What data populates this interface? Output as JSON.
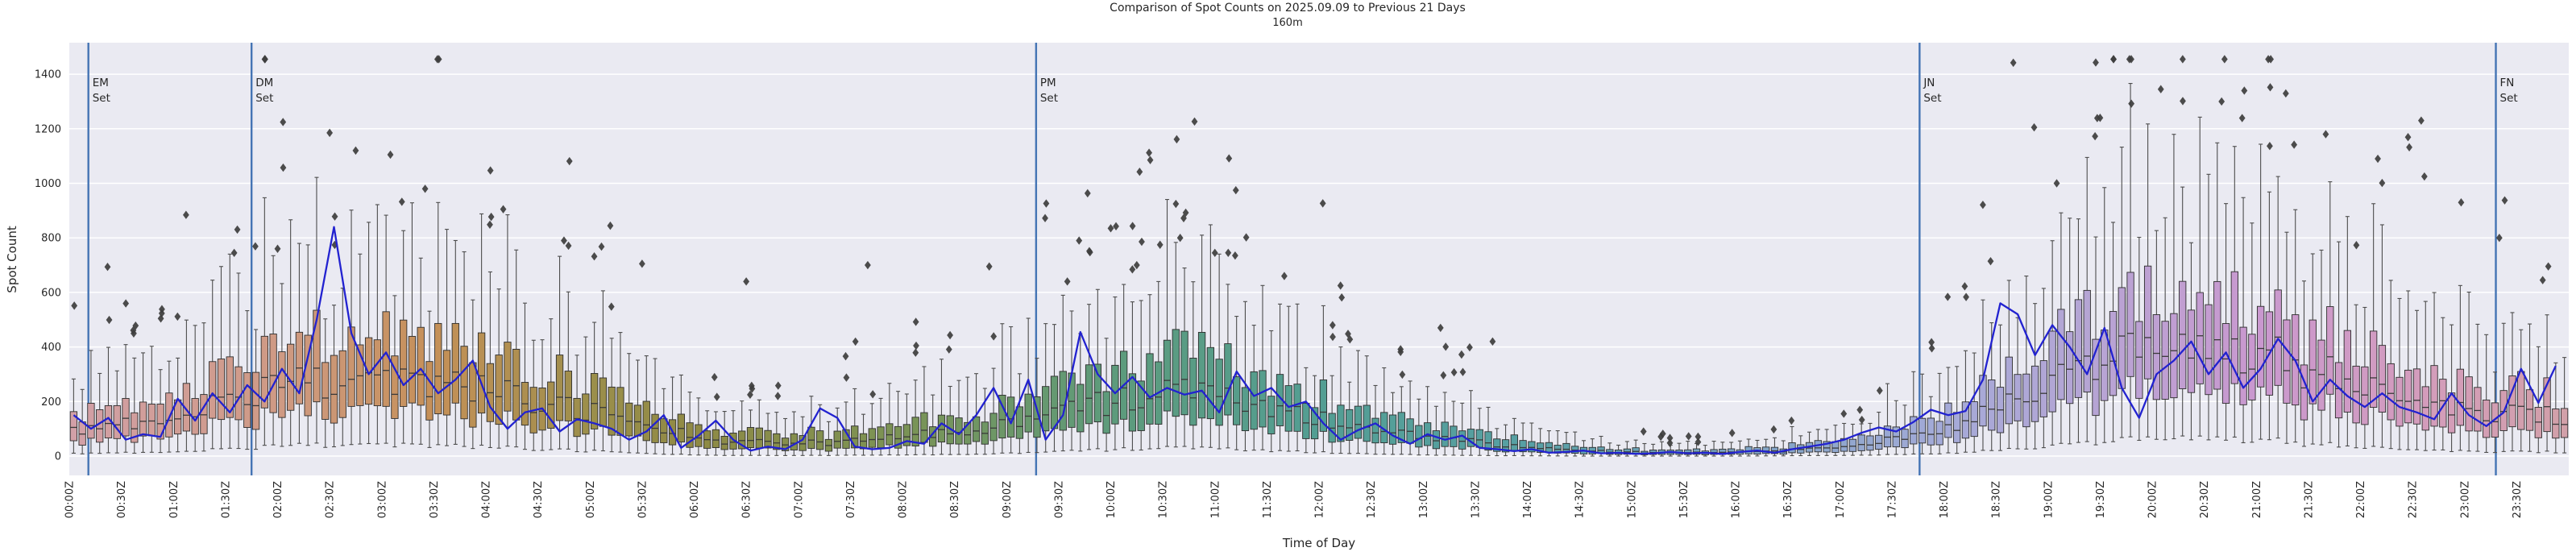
{
  "figure": {
    "title": "Comparison of Spot Counts on 2025.09.09 to Previous 21 Days",
    "subtitle": "160m",
    "xlabel": "Time of Day",
    "ylabel": "Spot Count"
  },
  "chart_data": {
    "type": "boxplot+line",
    "description": "Box plots of spot counts per 5-minute bin for previous 21 days, with blue line of current day (2025.09.09) counts, dark diamonds as outliers, and vertical band-set event lines.",
    "bin_minutes": 5,
    "anchor_step_minutes": 30,
    "ylim": [
      -75,
      1515
    ],
    "yticks": [
      0,
      200,
      400,
      600,
      800,
      1000,
      1200,
      1400
    ],
    "x_tick_labels": [
      "00:00Z",
      "00:30Z",
      "01:00Z",
      "01:30Z",
      "02:00Z",
      "02:30Z",
      "03:00Z",
      "03:30Z",
      "04:00Z",
      "04:30Z",
      "05:00Z",
      "05:30Z",
      "06:00Z",
      "06:30Z",
      "07:00Z",
      "07:30Z",
      "08:00Z",
      "08:30Z",
      "09:00Z",
      "09:30Z",
      "10:00Z",
      "10:30Z",
      "11:00Z",
      "11:30Z",
      "12:00Z",
      "12:30Z",
      "13:00Z",
      "13:30Z",
      "14:00Z",
      "14:30Z",
      "15:00Z",
      "15:30Z",
      "16:00Z",
      "16:30Z",
      "17:00Z",
      "17:30Z",
      "18:00Z",
      "18:30Z",
      "19:00Z",
      "19:30Z",
      "20:00Z",
      "20:30Z",
      "21:00Z",
      "21:30Z",
      "22:00Z",
      "22:30Z",
      "23:00Z",
      "23:30Z"
    ],
    "events": [
      {
        "label_line1": "EM",
        "label_line2": "Set",
        "minutes": 11
      },
      {
        "label_line1": "DM",
        "label_line2": "Set",
        "minutes": 105
      },
      {
        "label_line1": "PM",
        "label_line2": "Set",
        "minutes": 557
      },
      {
        "label_line1": "JN",
        "label_line2": "Set",
        "minutes": 1066
      },
      {
        "label_line1": "FN",
        "label_line2": "Set",
        "minutes": 1398
      }
    ],
    "series": {
      "boxes_anchors_30min": {
        "median": [
          100,
          120,
          160,
          200,
          250,
          280,
          280,
          265,
          245,
          205,
          160,
          115,
          70,
          50,
          45,
          55,
          70,
          90,
          120,
          160,
          200,
          235,
          220,
          180,
          140,
          100,
          70,
          50,
          30,
          20,
          15,
          12,
          15,
          20,
          30,
          60,
          100,
          170,
          260,
          340,
          400,
          420,
          380,
          320,
          260,
          210,
          170,
          160,
          150
        ],
        "q1": [
          55,
          65,
          90,
          115,
          145,
          165,
          165,
          155,
          140,
          115,
          90,
          62,
          35,
          25,
          22,
          28,
          35,
          48,
          65,
          90,
          115,
          135,
          125,
          100,
          75,
          52,
          35,
          25,
          14,
          9,
          7,
          5,
          7,
          10,
          15,
          30,
          55,
          95,
          150,
          200,
          240,
          250,
          225,
          185,
          148,
          118,
          95,
          88,
          82
        ],
        "q3": [
          170,
          200,
          260,
          320,
          390,
          430,
          430,
          410,
          380,
          320,
          255,
          185,
          115,
          85,
          78,
          92,
          115,
          150,
          195,
          255,
          315,
          400,
          345,
          285,
          225,
          165,
          115,
          85,
          52,
          34,
          26,
          21,
          26,
          35,
          52,
          100,
          165,
          270,
          400,
          510,
          590,
          615,
          560,
          475,
          390,
          320,
          262,
          248,
          235
        ],
        "whisker_low": [
          10,
          12,
          18,
          25,
          35,
          42,
          42,
          38,
          33,
          26,
          18,
          10,
          4,
          2,
          2,
          3,
          4,
          6,
          10,
          16,
          24,
          30,
          27,
          20,
          14,
          8,
          4,
          2,
          1,
          0,
          0,
          0,
          0,
          1,
          2,
          5,
          10,
          20,
          35,
          50,
          65,
          70,
          60,
          45,
          33,
          24,
          18,
          16,
          15
        ],
        "whisker_high": [
          320,
          380,
          490,
          600,
          710,
          780,
          780,
          745,
          690,
          590,
          480,
          355,
          225,
          170,
          155,
          180,
          225,
          290,
          375,
          485,
          590,
          680,
          645,
          540,
          430,
          320,
          225,
          170,
          105,
          70,
          55,
          45,
          55,
          72,
          105,
          195,
          320,
          510,
          740,
          930,
          1060,
          1100,
          1010,
          870,
          720,
          600,
          500,
          475,
          450
        ]
      },
      "current_day_line": {
        "label": "2025.09.09",
        "minutes_step": 10,
        "values": [
          150,
          100,
          140,
          60,
          80,
          70,
          210,
          130,
          230,
          160,
          260,
          200,
          320,
          230,
          500,
          840,
          450,
          300,
          380,
          260,
          320,
          230,
          280,
          350,
          180,
          100,
          160,
          175,
          90,
          135,
          120,
          100,
          60,
          90,
          150,
          30,
          75,
          130,
          60,
          20,
          35,
          25,
          60,
          175,
          140,
          35,
          25,
          30,
          55,
          45,
          120,
          80,
          150,
          250,
          120,
          280,
          60,
          150,
          455,
          300,
          230,
          290,
          215,
          250,
          225,
          240,
          160,
          310,
          220,
          250,
          180,
          200,
          120,
          60,
          95,
          120,
          75,
          45,
          80,
          60,
          75,
          30,
          25,
          18,
          25,
          12,
          15,
          20,
          10,
          12,
          8,
          10,
          15,
          10,
          12,
          8,
          15,
          20,
          12,
          25,
          35,
          45,
          60,
          85,
          105,
          90,
          125,
          170,
          150,
          165,
          280,
          560,
          520,
          370,
          480,
          400,
          300,
          470,
          250,
          140,
          300,
          350,
          420,
          300,
          380,
          250,
          320,
          430,
          350,
          200,
          280,
          220,
          180,
          230,
          180,
          160,
          135,
          230,
          150,
          110,
          160,
          320,
          195,
          330
        ]
      },
      "notable_outliers": [
        [
          95,
          745
        ],
        [
          120,
          760
        ],
        [
          150,
          1185
        ],
        [
          165,
          1120
        ],
        [
          185,
          1105
        ],
        [
          205,
          980
        ],
        [
          250,
          905
        ],
        [
          285,
          790
        ],
        [
          330,
          705
        ],
        [
          390,
          640
        ],
        [
          460,
          700
        ],
        [
          530,
          695
        ],
        [
          575,
          640
        ],
        [
          600,
          835
        ],
        [
          615,
          700
        ],
        [
          640,
          800
        ],
        [
          660,
          745
        ],
        [
          700,
          660
        ],
        [
          790,
          470
        ],
        [
          820,
          420
        ],
        [
          1120,
          1442
        ],
        [
          1132,
          1205
        ],
        [
          1145,
          1000
        ],
        [
          1170,
          1240
        ],
        [
          1188,
          1292
        ],
        [
          1205,
          1345
        ],
        [
          1240,
          1300
        ],
        [
          1268,
          1352
        ],
        [
          1300,
          1180
        ],
        [
          1330,
          1090
        ],
        [
          1355,
          1230
        ],
        [
          1378,
          930
        ],
        [
          1400,
          800
        ],
        [
          1425,
          645
        ]
      ]
    },
    "colors": {
      "plot_bg": "#eaeaf2",
      "grid": "#ffffff",
      "line": "#2222d0",
      "event_line": "#4474b4",
      "box_edge": "#2e2e2e",
      "median": "#3a3a3a",
      "whisker": "#4d4d4d",
      "outlier": "#3d3d3d",
      "tick_text": "#262626",
      "palette_anchors": [
        {
          "m": 0,
          "c": "#d2a0a8"
        },
        {
          "m": 120,
          "c": "#cf9a84"
        },
        {
          "m": 210,
          "c": "#c59058"
        },
        {
          "m": 300,
          "c": "#9c8f4b"
        },
        {
          "m": 360,
          "c": "#8f8a45"
        },
        {
          "m": 480,
          "c": "#7b9355"
        },
        {
          "m": 600,
          "c": "#5d9b7c"
        },
        {
          "m": 720,
          "c": "#539e93"
        },
        {
          "m": 840,
          "c": "#57a0a4"
        },
        {
          "m": 960,
          "c": "#7da4c4"
        },
        {
          "m": 1080,
          "c": "#a4aad8"
        },
        {
          "m": 1170,
          "c": "#b7a4d4"
        },
        {
          "m": 1260,
          "c": "#c998cf"
        },
        {
          "m": 1350,
          "c": "#d39cbd"
        },
        {
          "m": 1440,
          "c": "#d2a0a8"
        }
      ]
    },
    "outlier_gen": {
      "seed": 7,
      "prob": 0.36,
      "lo_mult": 1.12,
      "hi_mult": 0.85,
      "max": 1455
    },
    "jitter": {
      "seed": 13,
      "box_scale": 0.5,
      "edge_extra": 0.2,
      "hi_extra": 0.35
    }
  }
}
